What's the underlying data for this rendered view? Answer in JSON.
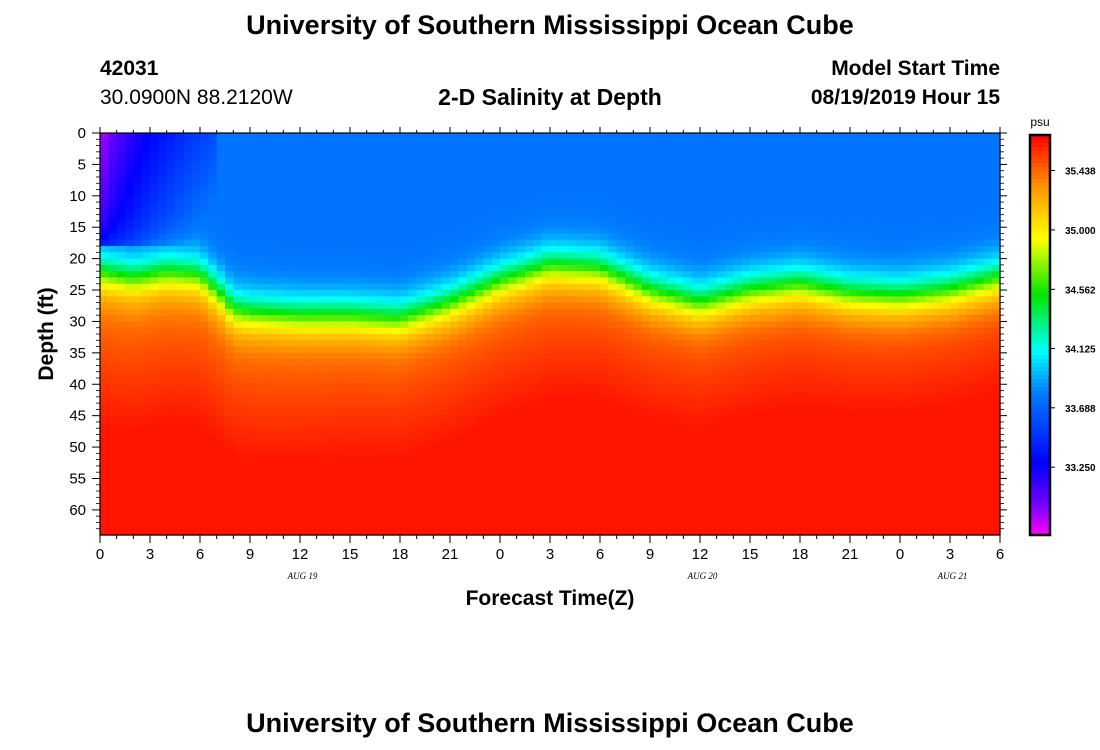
{
  "page": {
    "title_top": "University of Southern Mississippi Ocean Cube",
    "title_bottom": "University of Southern Mississippi Ocean Cube",
    "station_id": "42031",
    "station_coords": "30.0900N 88.2120W",
    "plot_title": "2-D Salinity at Depth",
    "model_start_label": "Model Start Time",
    "model_start_value": "08/19/2019 Hour 15"
  },
  "chart_data": {
    "type": "heatmap",
    "title": "2-D Salinity at Depth",
    "xlabel": "Forecast Time(Z)",
    "ylabel": "Depth (ft)",
    "x_ticks": [
      "0",
      "3",
      "6",
      "9",
      "12",
      "15",
      "18",
      "21",
      "0",
      "3",
      "6",
      "9",
      "12",
      "15",
      "18",
      "21",
      "0",
      "3",
      "6"
    ],
    "date_labels": [
      {
        "label": "AUG 19",
        "tick_index": 4
      },
      {
        "label": "AUG 20",
        "tick_index": 12
      },
      {
        "label": "AUG 21",
        "tick_index": 17
      }
    ],
    "y_ticks": [
      "0",
      "5",
      "10",
      "15",
      "20",
      "25",
      "30",
      "35",
      "40",
      "45",
      "50",
      "55",
      "60"
    ],
    "ylim": [
      0,
      64
    ],
    "x_hours_range": [
      0,
      54
    ],
    "colorbar": {
      "unit": "psu",
      "range": [
        32.75,
        35.7
      ],
      "labels": [
        "35.438",
        "35.000",
        "34.562",
        "34.125",
        "33.688",
        "33.250"
      ],
      "label_values": [
        35.438,
        35.0,
        34.562,
        34.125,
        33.688,
        33.25
      ]
    },
    "halocline_depth_ft": {
      "hours": [
        0,
        2,
        4,
        6,
        7,
        8,
        9,
        12,
        15,
        18,
        21,
        24,
        27,
        30,
        33,
        36,
        39,
        42,
        45,
        48,
        51,
        54
      ],
      "values": [
        22,
        23,
        22,
        22.5,
        25,
        28,
        28.5,
        29,
        29,
        29.5,
        27,
        23.5,
        21,
        21.5,
        25,
        27,
        25,
        24,
        25.5,
        26,
        25,
        23
      ]
    },
    "surface_salinity_psu": {
      "fresh_lens": {
        "hours": [
          0,
          7
        ],
        "depth_ft": [
          0,
          17
        ],
        "min_psu": 32.8,
        "max_psu": 33.4
      },
      "upper_layer_psu": 33.75,
      "deep_layer_psu_range": [
        35.35,
        35.65
      ]
    }
  }
}
